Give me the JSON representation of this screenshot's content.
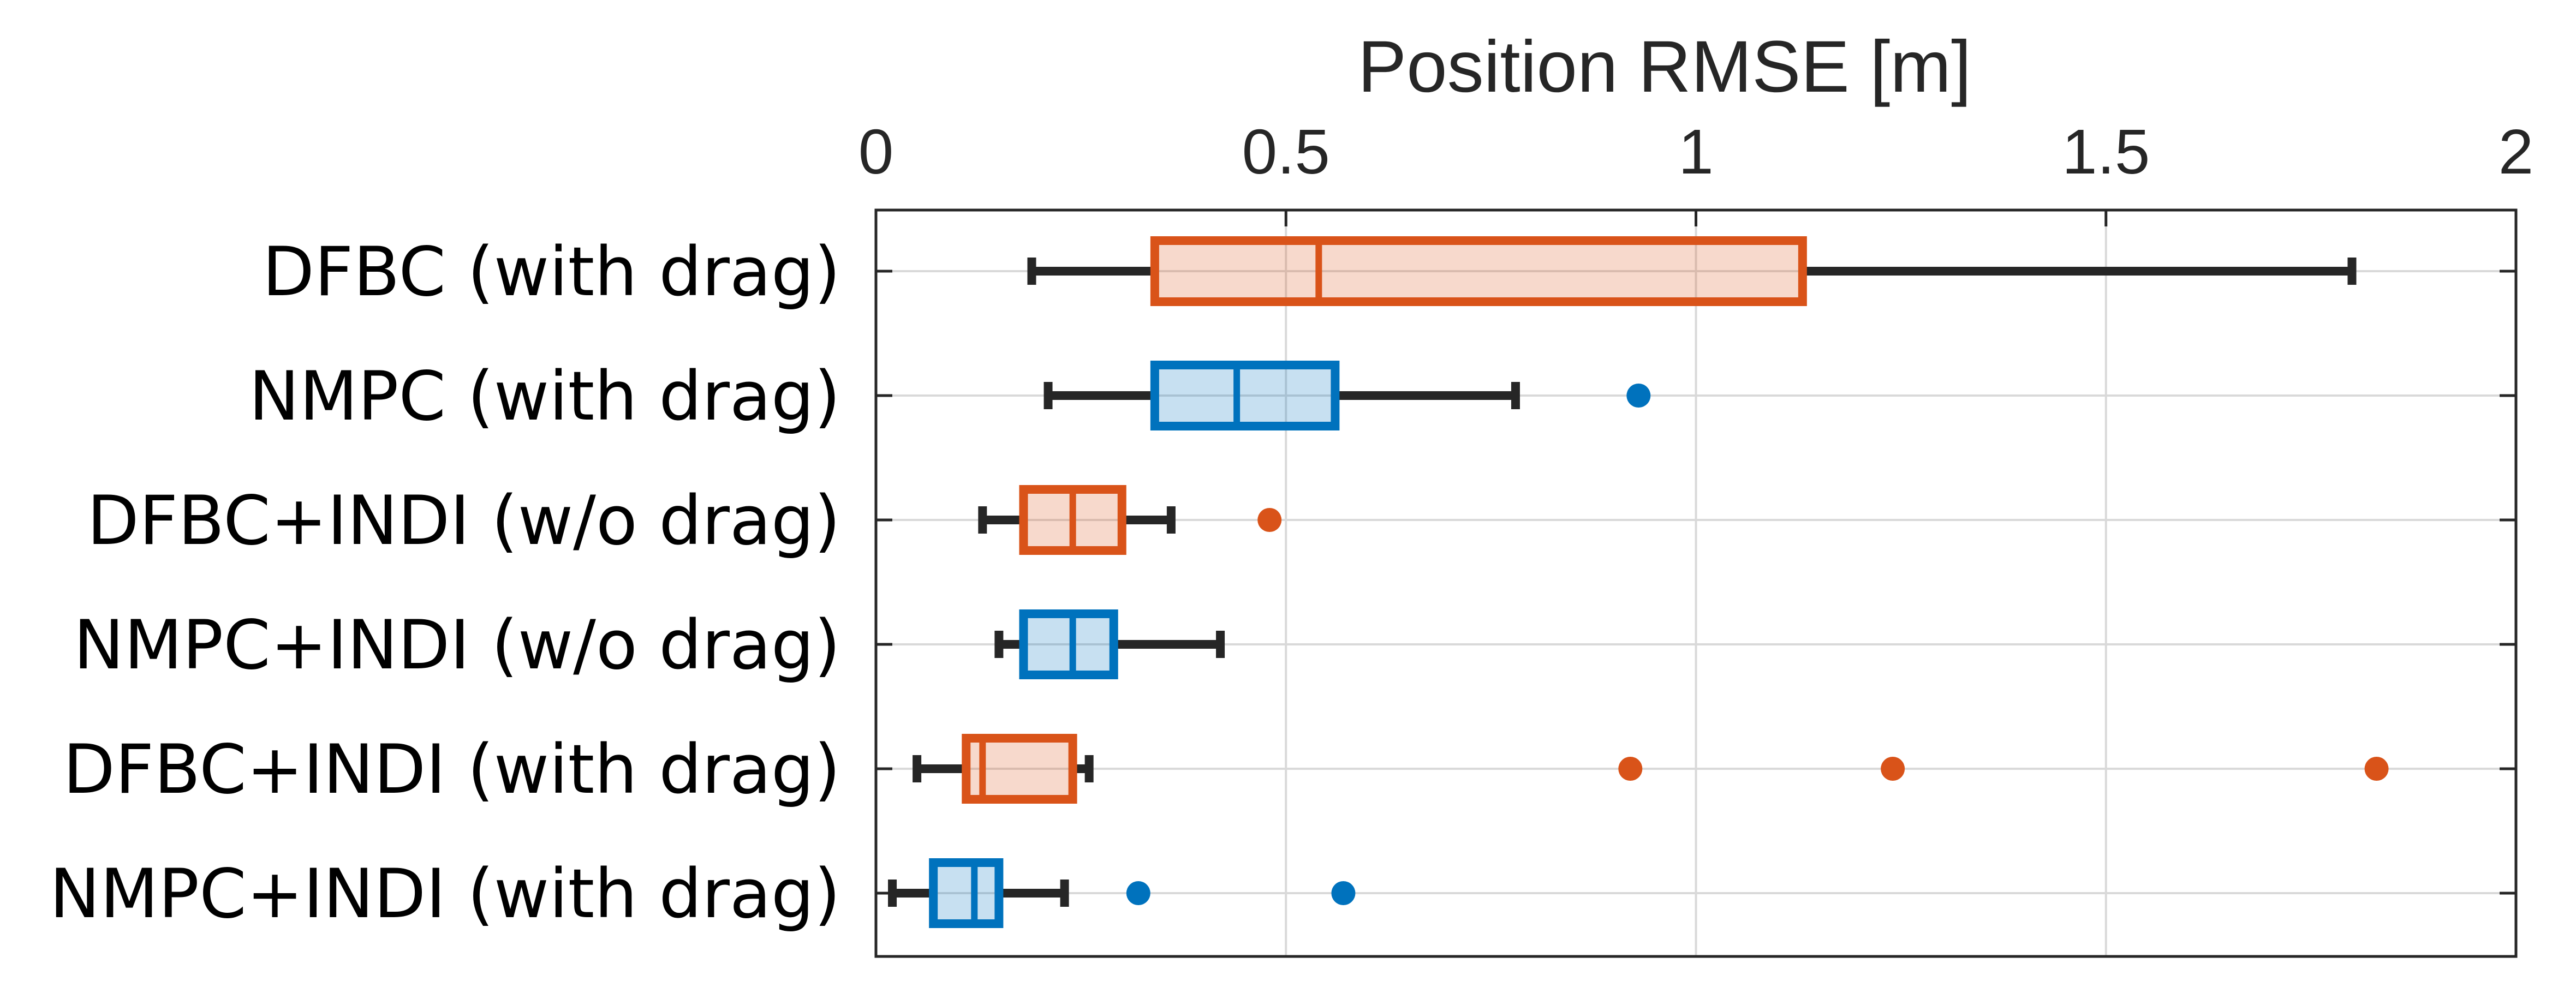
{
  "chart_data": {
    "type": "boxplot",
    "orientation": "horizontal",
    "title": "",
    "xlabel": "Position RMSE [m]",
    "ylabel": "",
    "xlim": [
      0,
      2
    ],
    "xticks": [
      0,
      0.5,
      1,
      1.5,
      2
    ],
    "xtick_labels": [
      "0",
      "0.5",
      "1",
      "1.5",
      "2"
    ],
    "grid": true,
    "x_axis_position": "top",
    "colors": {
      "dfbc": "#D95319",
      "nmpc": "#0072BD",
      "whisker": "#262626"
    },
    "series": [
      {
        "name": "DFBC (with drag)",
        "color_key": "dfbc",
        "whisker_low": 0.19,
        "q1": 0.34,
        "median": 0.54,
        "q3": 1.13,
        "whisker_high": 1.8,
        "outliers": []
      },
      {
        "name": "NMPC (with drag)",
        "color_key": "nmpc",
        "whisker_low": 0.21,
        "q1": 0.34,
        "median": 0.44,
        "q3": 0.56,
        "whisker_high": 0.78,
        "outliers": [
          0.93
        ]
      },
      {
        "name": "DFBC+INDI (w/o drag)",
        "color_key": "dfbc",
        "whisker_low": 0.13,
        "q1": 0.18,
        "median": 0.24,
        "q3": 0.3,
        "whisker_high": 0.36,
        "outliers": [
          0.48
        ]
      },
      {
        "name": "NMPC+INDI (w/o drag)",
        "color_key": "nmpc",
        "whisker_low": 0.15,
        "q1": 0.18,
        "median": 0.24,
        "q3": 0.29,
        "whisker_high": 0.42,
        "outliers": []
      },
      {
        "name": "DFBC+INDI (with drag)",
        "color_key": "dfbc",
        "whisker_low": 0.05,
        "q1": 0.11,
        "median": 0.13,
        "q3": 0.24,
        "whisker_high": 0.26,
        "outliers": [
          0.92,
          1.24,
          1.83
        ]
      },
      {
        "name": "NMPC+INDI (with drag)",
        "color_key": "nmpc",
        "whisker_low": 0.02,
        "q1": 0.07,
        "median": 0.12,
        "q3": 0.15,
        "whisker_high": 0.23,
        "outliers": [
          0.32,
          0.57
        ]
      }
    ]
  }
}
